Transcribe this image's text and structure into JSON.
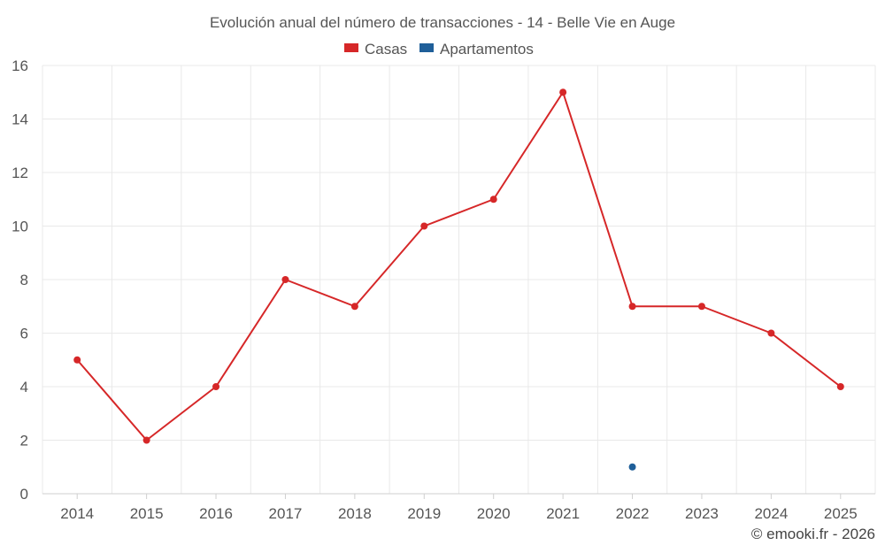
{
  "chart_data": {
    "type": "line",
    "title": "Evolución anual del número de transacciones - 14 - Belle Vie en Auge",
    "xlabel": "",
    "ylabel": "",
    "categories": [
      "2014",
      "2015",
      "2016",
      "2017",
      "2018",
      "2019",
      "2020",
      "2021",
      "2022",
      "2023",
      "2024",
      "2025"
    ],
    "ylim": [
      0,
      16
    ],
    "yticks": [
      "0",
      "2",
      "4",
      "6",
      "8",
      "10",
      "12",
      "14",
      "16"
    ],
    "grid": true,
    "legend_position": "top",
    "series": [
      {
        "name": "Casas",
        "color": "#d62728",
        "values": [
          5,
          2,
          4,
          8,
          7,
          10,
          11,
          15,
          7,
          7,
          6,
          4
        ]
      },
      {
        "name": "Apartamentos",
        "color": "#1f5f99",
        "values": [
          null,
          null,
          null,
          null,
          null,
          null,
          null,
          null,
          1,
          null,
          null,
          null
        ]
      }
    ]
  },
  "footer": {
    "text": "© emooki.fr - 2026"
  }
}
